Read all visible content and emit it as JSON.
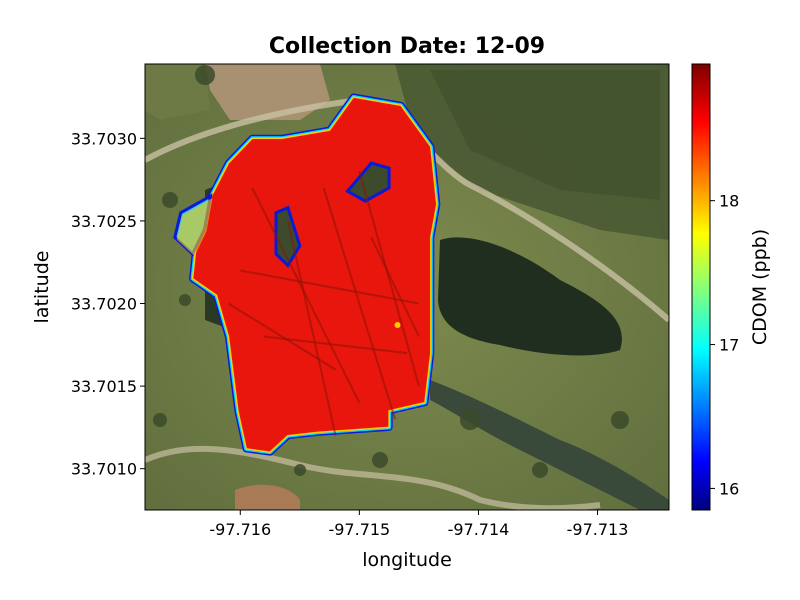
{
  "chart_data": {
    "type": "heatmap",
    "title": "Collection Date: 12-09",
    "xlabel": "longitude",
    "ylabel": "latitude",
    "xlim": [
      -97.7168,
      -97.7124
    ],
    "ylim": [
      33.70075,
      33.70345
    ],
    "xticks": [
      {
        "value": -97.716,
        "label": "-97.716"
      },
      {
        "value": -97.715,
        "label": "-97.715"
      },
      {
        "value": -97.714,
        "label": "-97.714"
      },
      {
        "value": -97.713,
        "label": "-97.713"
      }
    ],
    "yticks": [
      {
        "value": 33.701,
        "label": "33.7010"
      },
      {
        "value": 33.7015,
        "label": "33.7015"
      },
      {
        "value": 33.702,
        "label": "33.7020"
      },
      {
        "value": 33.7025,
        "label": "33.7025"
      },
      {
        "value": 33.703,
        "label": "33.7030"
      }
    ],
    "background": "satellite imagery",
    "colormap": "jet",
    "colorbar": {
      "label": "CDOM (ppb)",
      "range": [
        15.85,
        18.95
      ],
      "ticks": [
        {
          "value": 16,
          "label": "16"
        },
        {
          "value": 17,
          "label": "17"
        },
        {
          "value": 18,
          "label": "18"
        }
      ]
    },
    "survey_region": {
      "typical_value": 18.6,
      "edge_value": 16.0,
      "polygon": [
        [
          -97.71565,
          33.703
        ],
        [
          -97.71525,
          33.70305
        ],
        [
          -97.71505,
          33.70325
        ],
        [
          -97.71465,
          33.7032
        ],
        [
          -97.7145,
          33.70305
        ],
        [
          -97.7144,
          33.70295
        ],
        [
          -97.71435,
          33.7026
        ],
        [
          -97.7144,
          33.7024
        ],
        [
          -97.7144,
          33.7021
        ],
        [
          -97.7144,
          33.7017
        ],
        [
          -97.71445,
          33.7014
        ],
        [
          -97.71475,
          33.70135
        ],
        [
          -97.71475,
          33.70125
        ],
        [
          -97.71535,
          33.70122
        ],
        [
          -97.7156,
          33.7012
        ],
        [
          -97.71575,
          33.7011
        ],
        [
          -97.71595,
          33.70112
        ],
        [
          -97.71602,
          33.70135
        ],
        [
          -97.7161,
          33.7018
        ],
        [
          -97.7162,
          33.70205
        ],
        [
          -97.7164,
          33.70215
        ],
        [
          -97.71635,
          33.7025
        ],
        [
          -97.7161,
          33.70285
        ],
        [
          -97.7159,
          33.703
        ]
      ],
      "west_strip": [
        [
          -97.71625,
          33.70265
        ],
        [
          -97.7163,
          33.70245
        ],
        [
          -97.7164,
          33.7023
        ],
        [
          -97.71655,
          33.7024
        ],
        [
          -97.7165,
          33.70255
        ]
      ],
      "islands": [
        [
          [
            -97.7151,
            33.70268
          ],
          [
            -97.7149,
            33.70285
          ],
          [
            -97.71475,
            33.70282
          ],
          [
            -97.71475,
            33.7027
          ],
          [
            -97.71495,
            33.70262
          ]
        ],
        [
          [
            -97.7157,
            33.70255
          ],
          [
            -97.7156,
            33.70258
          ],
          [
            -97.7155,
            33.70235
          ],
          [
            -97.7156,
            33.70223
          ],
          [
            -97.7157,
            33.7023
          ]
        ]
      ]
    },
    "colors": {
      "high": "#e8160c",
      "mid": "#ffcc00",
      "low": "#0a1bd6"
    }
  }
}
